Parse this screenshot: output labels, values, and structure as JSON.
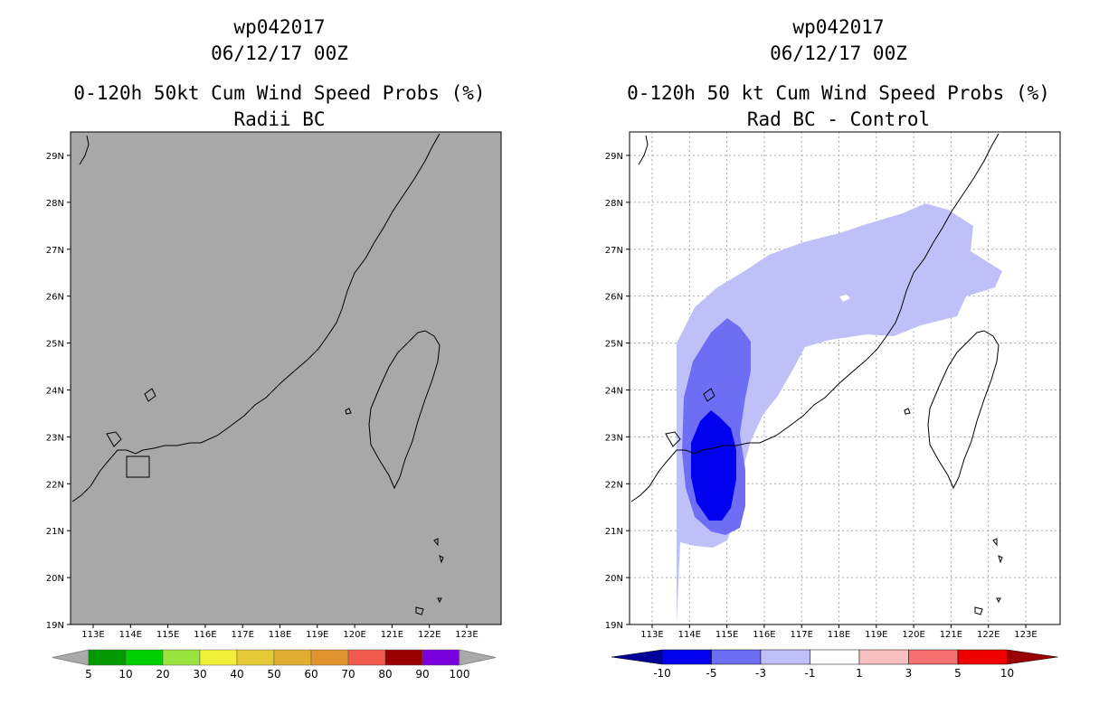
{
  "panels": [
    {
      "storm_id": "wp042017",
      "datetime": "06/12/17 00Z",
      "title": "0-120h 50kt Cum Wind Speed Probs (%)",
      "subtitle": "Radii BC",
      "lat_labels": [
        "19N",
        "20N",
        "21N",
        "22N",
        "23N",
        "24N",
        "25N",
        "26N",
        "27N",
        "28N",
        "29N"
      ],
      "lon_labels": [
        "113E",
        "114E",
        "115E",
        "116E",
        "117E",
        "118E",
        "119E",
        "120E",
        "121E",
        "122E",
        "123E"
      ],
      "colorbar": {
        "labels": [
          "5",
          "10",
          "20",
          "30",
          "40",
          "50",
          "60",
          "70",
          "80",
          "90",
          "100"
        ],
        "colors": [
          "#009a00",
          "#00d000",
          "#9be33f",
          "#f0ef3a",
          "#e5c937",
          "#e2ad33",
          "#e1932e",
          "#ee5a4c",
          "#9a0000",
          "#7a00dd"
        ]
      }
    },
    {
      "storm_id": "wp042017",
      "datetime": "06/12/17 00Z",
      "title": "0-120h 50 kt Cum Wind Speed Probs (%)",
      "subtitle": "Rad BC - Control",
      "lat_labels": [
        "19N",
        "20N",
        "21N",
        "22N",
        "23N",
        "24N",
        "25N",
        "26N",
        "27N",
        "28N",
        "29N"
      ],
      "lon_labels": [
        "113E",
        "114E",
        "115E",
        "116E",
        "117E",
        "118E",
        "119E",
        "120E",
        "121E",
        "122E",
        "123E"
      ],
      "colorbar": {
        "labels": [
          "-10",
          "-5",
          "-3",
          "-1",
          "1",
          "3",
          "5",
          "10"
        ],
        "colors": [
          "#00009a",
          "#0000ee",
          "#6e6ef5",
          "#c0c0f8",
          "#ffffff",
          "#f8c0c0",
          "#f57070",
          "#ee0000",
          "#9a0000"
        ]
      }
    }
  ]
}
